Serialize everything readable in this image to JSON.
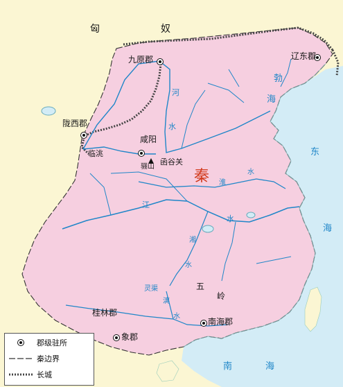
{
  "regions": {
    "xiongnu": [
      "匈",
      "奴"
    ],
    "qin": "秦"
  },
  "commanderies": [
    {
      "id": "jiuyuan",
      "label": "九原郡"
    },
    {
      "id": "liaodong",
      "label": "辽东郡"
    },
    {
      "id": "longxi",
      "label": "陇西郡"
    },
    {
      "id": "xianyang",
      "label": "咸阳"
    },
    {
      "id": "guilin",
      "label": "桂林郡"
    },
    {
      "id": "xiang",
      "label": "象郡"
    },
    {
      "id": "nanhai",
      "label": "南海郡"
    }
  ],
  "places": {
    "lintao": "临洮",
    "lishan": "骊山",
    "hanguguan": "函谷关",
    "wuling": [
      "五",
      "岭"
    ],
    "lingqu": [
      "灵渠"
    ]
  },
  "rivers": {
    "he": [
      "河",
      "水"
    ],
    "huai": [
      "淮",
      "水"
    ],
    "jiang": [
      "江",
      "水"
    ],
    "xiang": [
      "湘",
      "水"
    ],
    "li": [
      "漓",
      "水"
    ]
  },
  "seas": {
    "bohai": [
      "勃",
      "海"
    ],
    "donghai": [
      "东",
      "海"
    ],
    "nanhai": [
      "南",
      "海"
    ]
  },
  "legend": {
    "seat": "郡级驻所",
    "border": "秦边界",
    "wall": "长城"
  },
  "colors": {
    "qin_fill": "#f6cfe0",
    "land": "#fbf6d3",
    "sea": "#d3ecf6",
    "river": "#1f86c8",
    "label_qin": "#d23a1c"
  }
}
